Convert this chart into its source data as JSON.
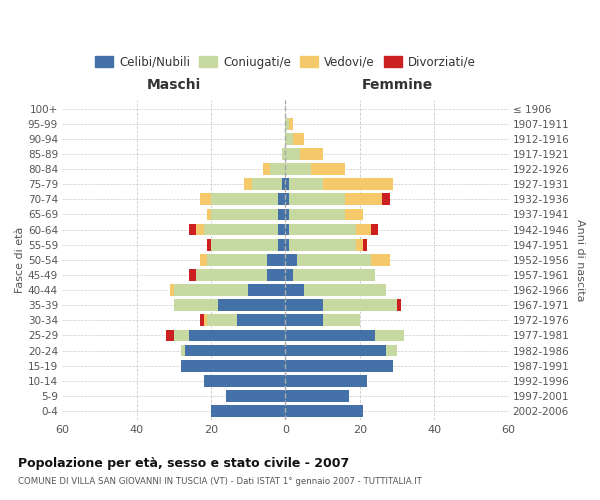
{
  "age_groups": [
    "0-4",
    "5-9",
    "10-14",
    "15-19",
    "20-24",
    "25-29",
    "30-34",
    "35-39",
    "40-44",
    "45-49",
    "50-54",
    "55-59",
    "60-64",
    "65-69",
    "70-74",
    "75-79",
    "80-84",
    "85-89",
    "90-94",
    "95-99",
    "100+"
  ],
  "birth_years": [
    "2002-2006",
    "1997-2001",
    "1992-1996",
    "1987-1991",
    "1982-1986",
    "1977-1981",
    "1972-1976",
    "1967-1971",
    "1962-1966",
    "1957-1961",
    "1952-1956",
    "1947-1951",
    "1942-1946",
    "1937-1941",
    "1932-1936",
    "1927-1931",
    "1922-1926",
    "1917-1921",
    "1912-1916",
    "1907-1911",
    "≤ 1906"
  ],
  "male": {
    "celibi": [
      20,
      16,
      22,
      28,
      27,
      26,
      13,
      18,
      10,
      5,
      5,
      2,
      2,
      2,
      2,
      1,
      0,
      0,
      0,
      0,
      0
    ],
    "coniugati": [
      0,
      0,
      0,
      0,
      1,
      4,
      8,
      12,
      20,
      19,
      16,
      18,
      20,
      18,
      18,
      8,
      4,
      1,
      0,
      0,
      0
    ],
    "vedovi": [
      0,
      0,
      0,
      0,
      0,
      0,
      1,
      0,
      1,
      0,
      2,
      0,
      2,
      1,
      3,
      2,
      2,
      0,
      0,
      0,
      0
    ],
    "divorziati": [
      0,
      0,
      0,
      0,
      0,
      2,
      1,
      0,
      0,
      2,
      0,
      1,
      2,
      0,
      0,
      0,
      0,
      0,
      0,
      0,
      0
    ]
  },
  "female": {
    "nubili": [
      21,
      17,
      22,
      29,
      27,
      24,
      10,
      10,
      5,
      2,
      3,
      1,
      1,
      1,
      1,
      1,
      0,
      0,
      0,
      0,
      0
    ],
    "coniugate": [
      0,
      0,
      0,
      0,
      3,
      8,
      10,
      20,
      22,
      22,
      20,
      18,
      18,
      15,
      15,
      9,
      7,
      4,
      2,
      1,
      0
    ],
    "vedove": [
      0,
      0,
      0,
      0,
      0,
      0,
      0,
      0,
      0,
      0,
      5,
      2,
      4,
      5,
      10,
      19,
      9,
      6,
      3,
      1,
      0
    ],
    "divorziate": [
      0,
      0,
      0,
      0,
      0,
      0,
      0,
      1,
      0,
      0,
      0,
      1,
      2,
      0,
      2,
      0,
      0,
      0,
      0,
      0,
      0
    ]
  },
  "colors": {
    "celibi": "#4472a8",
    "coniugati": "#c5d9a0",
    "vedovi": "#f5c96a",
    "divorziati": "#cc2020"
  },
  "title": "Popolazione per età, sesso e stato civile - 2007",
  "subtitle": "COMUNE DI VILLA SAN GIOVANNI IN TUSCIA (VT) - Dati ISTAT 1° gennaio 2007 - TUTTITALIA.IT",
  "xlabel_left": "Maschi",
  "xlabel_right": "Femmine",
  "ylabel_left": "Fasce di età",
  "ylabel_right": "Anni di nascita",
  "xlim": 60,
  "legend_labels": [
    "Celibi/Nubili",
    "Coniugati/e",
    "Vedovi/e",
    "Divorziati/e"
  ]
}
